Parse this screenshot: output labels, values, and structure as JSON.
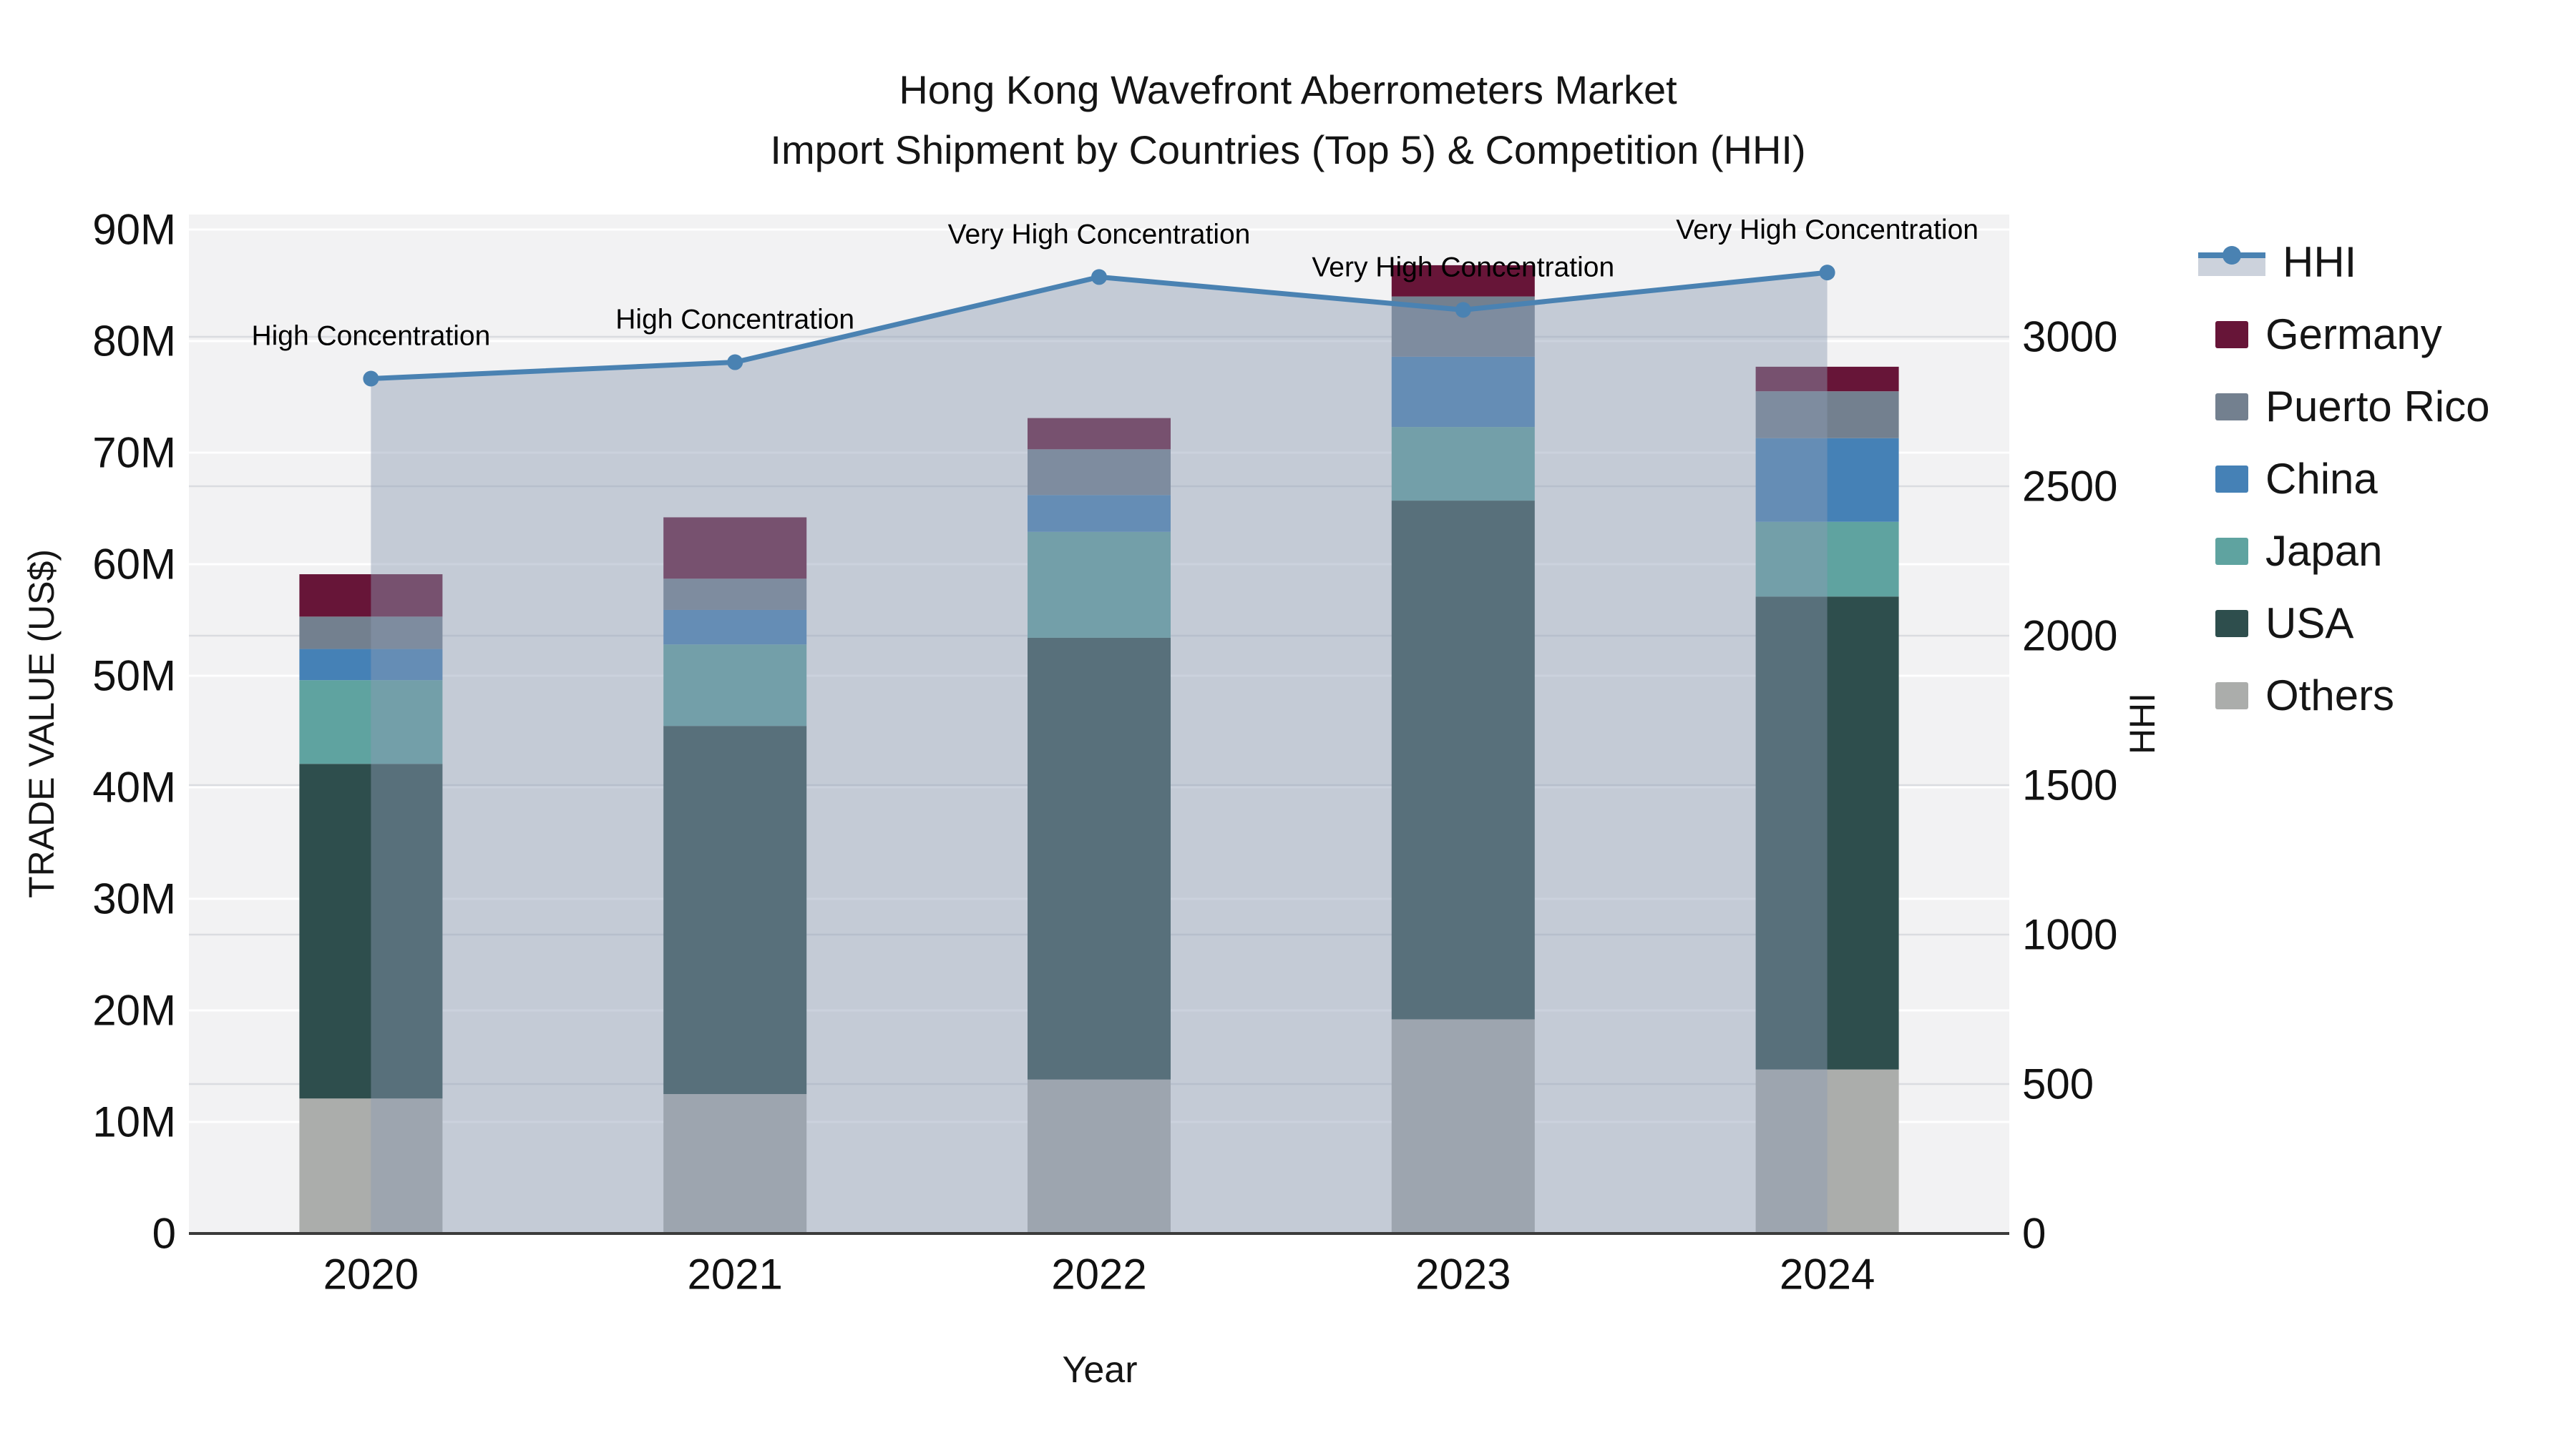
{
  "title": {
    "line1": "Hong Kong Wavefront Aberrometers Market",
    "line2": "Import Shipment by Countries (Top 5) & Competition (HHI)"
  },
  "legend": {
    "position": "right",
    "items": [
      {
        "label": "HHI",
        "type": "line-marker",
        "color": "#4A82B2",
        "band_color": "#CCD2DC"
      },
      {
        "label": "Germany",
        "type": "swatch",
        "color": "#671538"
      },
      {
        "label": "Puerto Rico",
        "type": "swatch",
        "color": "#73808F"
      },
      {
        "label": "China",
        "type": "swatch",
        "color": "#4581B6"
      },
      {
        "label": "Japan",
        "type": "swatch",
        "color": "#5FA3A0"
      },
      {
        "label": "USA",
        "type": "swatch",
        "color": "#2E4E4D"
      },
      {
        "label": "Others",
        "type": "swatch",
        "color": "#ABADAB"
      }
    ]
  },
  "chart_data": {
    "type": "bar",
    "stacked": true,
    "secondary_line": "HHI",
    "categories": [
      "2020",
      "2021",
      "2022",
      "2023",
      "2024"
    ],
    "value_unit": "millions US$",
    "series": [
      {
        "name": "Others",
        "color": "#ABADAB",
        "values": [
          12.1,
          12.5,
          13.8,
          19.2,
          14.7
        ]
      },
      {
        "name": "USA",
        "color": "#2E4E4D",
        "values": [
          30.0,
          33.0,
          39.6,
          46.5,
          42.4
        ]
      },
      {
        "name": "Japan",
        "color": "#5FA3A0",
        "values": [
          7.5,
          7.3,
          9.5,
          6.6,
          6.7
        ]
      },
      {
        "name": "China",
        "color": "#4581B6",
        "values": [
          2.8,
          3.1,
          3.3,
          6.3,
          7.5
        ]
      },
      {
        "name": "Puerto Rico",
        "color": "#73808F",
        "values": [
          2.9,
          2.8,
          4.1,
          5.4,
          4.2
        ]
      },
      {
        "name": "Germany",
        "color": "#671538",
        "values": [
          3.8,
          5.5,
          2.8,
          2.8,
          2.2
        ]
      }
    ],
    "bar_totals": [
      59.1,
      64.2,
      73.1,
      86.8,
      77.7
    ],
    "hhi": {
      "name": "HHI",
      "values": [
        2860,
        2915,
        3200,
        3090,
        3215
      ],
      "color": "#4A82B2",
      "fill_color": "rgba(140,155,180,0.45)",
      "marker": "circle"
    },
    "annotations": [
      "High Concentration",
      "High Concentration",
      "Very High Concentration",
      "Very High Concentration",
      "Very High Concentration"
    ],
    "x_axis": {
      "title": "Year"
    },
    "y_axis": {
      "title": "TRADE VALUE (US$)",
      "range": [
        0,
        91.3
      ],
      "ticks": [
        {
          "label": "0",
          "value": 0
        },
        {
          "label": "10M",
          "value": 10
        },
        {
          "label": "20M",
          "value": 20
        },
        {
          "label": "30M",
          "value": 30
        },
        {
          "label": "40M",
          "value": 40
        },
        {
          "label": "50M",
          "value": 50
        },
        {
          "label": "60M",
          "value": 60
        },
        {
          "label": "70M",
          "value": 70
        },
        {
          "label": "80M",
          "value": 80
        },
        {
          "label": "90M",
          "value": 90
        }
      ]
    },
    "y2_axis": {
      "title": "HHI",
      "range": [
        0,
        3410
      ],
      "ticks": [
        {
          "label": "0",
          "value": 0
        },
        {
          "label": "500",
          "value": 500
        },
        {
          "label": "1000",
          "value": 1000
        },
        {
          "label": "1500",
          "value": 1500
        },
        {
          "label": "2000",
          "value": 2000
        },
        {
          "label": "2500",
          "value": 2500
        },
        {
          "label": "3000",
          "value": 3000
        }
      ]
    },
    "style": {
      "plot_bg": "#F2F2F3",
      "grid_major": "#FFFFFF",
      "grid_hhi": "rgba(130,140,158,0.22)",
      "axis_line": "#3B3B3B",
      "text_color": "#111111"
    }
  }
}
